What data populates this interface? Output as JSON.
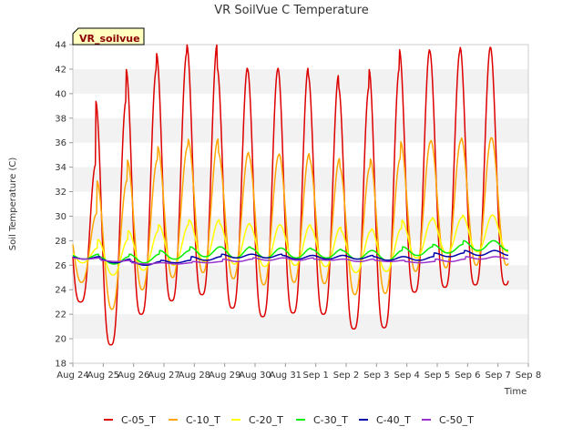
{
  "chart_data": {
    "type": "line",
    "title": "VR SoilVue C Temperature",
    "xlabel": "Time",
    "ylabel": "Soil Temperature (C)",
    "station_label": "VR_soilvue",
    "ylim": [
      18,
      44
    ],
    "yticks": [
      18,
      20,
      22,
      24,
      26,
      28,
      30,
      32,
      34,
      36,
      38,
      40,
      42,
      44
    ],
    "xlim": [
      0,
      15
    ],
    "xticks": [
      {
        "day": 0,
        "label": "Aug 24"
      },
      {
        "day": 1,
        "label": "Aug 25"
      },
      {
        "day": 2,
        "label": "Aug 26"
      },
      {
        "day": 3,
        "label": "Aug 27"
      },
      {
        "day": 4,
        "label": "Aug 28"
      },
      {
        "day": 5,
        "label": "Aug 29"
      },
      {
        "day": 6,
        "label": "Aug 30"
      },
      {
        "day": 7,
        "label": "Aug 31"
      },
      {
        "day": 8,
        "label": "Sep 1"
      },
      {
        "day": 9,
        "label": "Sep 2"
      },
      {
        "day": 10,
        "label": "Sep 3"
      },
      {
        "day": 11,
        "label": "Sep 4"
      },
      {
        "day": 12,
        "label": "Sep 5"
      },
      {
        "day": 13,
        "label": "Sep 6"
      },
      {
        "day": 14,
        "label": "Sep 7"
      },
      {
        "day": 15,
        "label": "Sep 8"
      }
    ],
    "grid": "horizontal bands",
    "legend_position": "bottom",
    "series": [
      {
        "name": "C-05_T",
        "color": "#dd0000",
        "daily_min": [
          23.0,
          19.5,
          22.0,
          23.1,
          23.6,
          22.5,
          21.8,
          22.1,
          22.0,
          20.8,
          20.9,
          23.8,
          24.2,
          24.4
        ],
        "daily_max": [
          34.2,
          39.4,
          42.0,
          43.3,
          44.0,
          42.1,
          42.0,
          42.1,
          41.5,
          40.5,
          42.0,
          43.6,
          43.5,
          43.8
        ]
      },
      {
        "name": "C-10_T",
        "color": "#ffa500",
        "daily_min": [
          24.6,
          22.4,
          24.0,
          25.0,
          25.4,
          24.9,
          24.4,
          24.6,
          24.5,
          23.6,
          23.7,
          25.5,
          25.8,
          26.0
        ],
        "daily_max": [
          30.2,
          32.9,
          34.6,
          35.7,
          36.3,
          35.2,
          35.0,
          35.1,
          34.7,
          34.0,
          34.7,
          36.1,
          36.2,
          36.4
        ]
      },
      {
        "name": "C-20_T",
        "color": "#ffff00",
        "daily_min": [
          26.2,
          25.2,
          25.6,
          26.0,
          26.3,
          26.1,
          25.9,
          26.0,
          25.9,
          25.4,
          25.5,
          26.6,
          27.0,
          27.1
        ],
        "daily_max": [
          27.4,
          28.1,
          28.8,
          29.3,
          29.7,
          29.4,
          29.3,
          29.3,
          29.1,
          28.8,
          29.0,
          29.7,
          29.9,
          30.1
        ]
      },
      {
        "name": "C-30_T",
        "color": "#00ee00",
        "daily_min": [
          26.5,
          26.1,
          26.2,
          26.5,
          26.7,
          26.6,
          26.6,
          26.6,
          26.6,
          26.5,
          26.4,
          26.8,
          27.0,
          27.2
        ],
        "daily_max": [
          26.9,
          26.7,
          26.9,
          27.2,
          27.5,
          27.5,
          27.4,
          27.4,
          27.3,
          27.2,
          27.2,
          27.5,
          27.7,
          28.0
        ]
      },
      {
        "name": "C-40_T",
        "color": "#0000aa",
        "daily_min": [
          26.5,
          26.2,
          26.0,
          26.2,
          26.4,
          26.6,
          26.6,
          26.5,
          26.5,
          26.5,
          26.4,
          26.4,
          26.7,
          26.8
        ],
        "daily_max": [
          26.7,
          26.5,
          26.3,
          26.4,
          26.7,
          26.9,
          26.9,
          26.8,
          26.8,
          26.8,
          26.7,
          26.7,
          27.0,
          27.2
        ]
      },
      {
        "name": "C-50_T",
        "color": "#9933cc",
        "daily_min": [
          26.5,
          26.3,
          26.1,
          26.1,
          26.2,
          26.3,
          26.4,
          26.4,
          26.4,
          26.3,
          26.3,
          26.2,
          26.3,
          26.5
        ],
        "daily_max": [
          26.6,
          26.4,
          26.2,
          26.2,
          26.3,
          26.5,
          26.6,
          26.6,
          26.5,
          26.5,
          26.4,
          26.3,
          26.5,
          26.7
        ]
      }
    ]
  }
}
